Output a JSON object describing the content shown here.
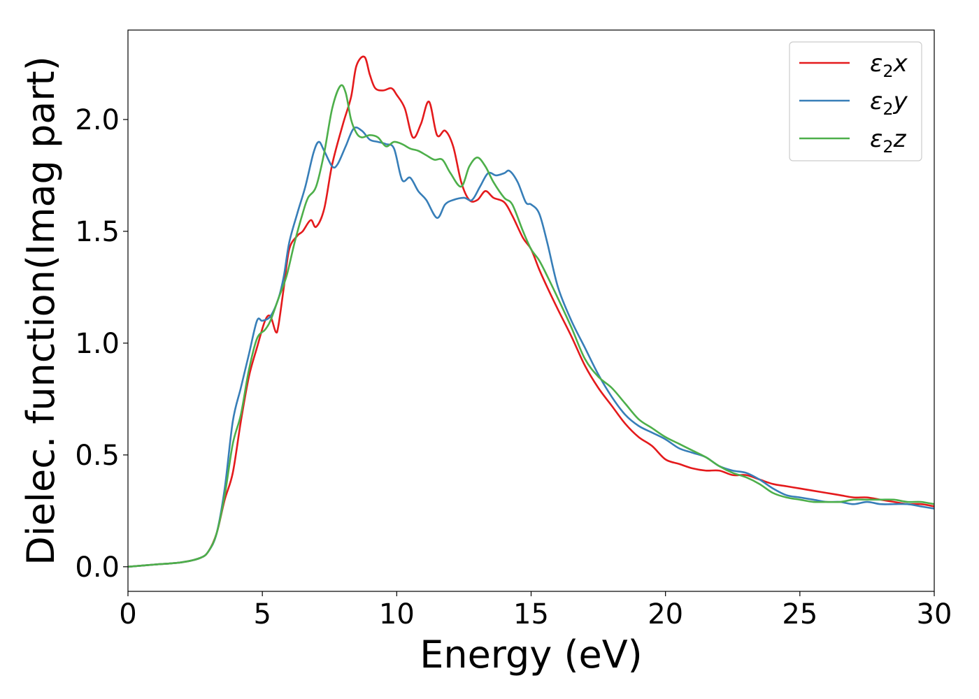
{
  "chart_data": {
    "type": "line",
    "title": "",
    "xlabel": "Energy (eV)",
    "ylabel": "Dielec. function(Imag part)",
    "xlim": [
      0,
      30
    ],
    "ylim": [
      -0.11,
      2.4
    ],
    "xticks": [
      0,
      5,
      10,
      15,
      20,
      25,
      30
    ],
    "xtick_labels": [
      "0",
      "5",
      "10",
      "15",
      "20",
      "25",
      "30"
    ],
    "yticks": [
      0.0,
      0.5,
      1.0,
      1.5,
      2.0
    ],
    "ytick_labels": [
      "0.0",
      "0.5",
      "1.0",
      "1.5",
      "2.0"
    ],
    "grid": false,
    "legend_position": "top-right",
    "series": [
      {
        "name": "ε2x",
        "legend_base": "ε",
        "legend_sub": "2",
        "legend_suffix": "x",
        "color": "#e41a1c",
        "x": [
          0,
          1,
          2,
          2.7,
          3,
          3.3,
          3.6,
          3.9,
          4.2,
          4.5,
          4.8,
          5.1,
          5.3,
          5.5,
          5.6,
          5.8,
          6.0,
          6.3,
          6.5,
          6.8,
          7.0,
          7.3,
          7.6,
          8.0,
          8.3,
          8.5,
          8.8,
          9.0,
          9.2,
          9.5,
          9.8,
          10.0,
          10.3,
          10.6,
          10.9,
          11.2,
          11.5,
          11.8,
          12.1,
          12.4,
          12.7,
          13.0,
          13.3,
          13.6,
          14.0,
          14.3,
          14.7,
          15.0,
          15.3,
          15.6,
          16.0,
          16.5,
          17.0,
          17.5,
          18.0,
          18.5,
          19.0,
          19.5,
          20.0,
          20.5,
          21.0,
          21.5,
          22.0,
          22.5,
          23.0,
          23.5,
          24.0,
          24.5,
          25.0,
          25.5,
          26.0,
          26.5,
          27.0,
          27.5,
          28.0,
          28.5,
          29.0,
          29.5,
          30.0
        ],
        "y": [
          0.0,
          0.01,
          0.02,
          0.04,
          0.07,
          0.15,
          0.3,
          0.42,
          0.65,
          0.85,
          0.98,
          1.1,
          1.12,
          1.05,
          1.08,
          1.25,
          1.42,
          1.48,
          1.5,
          1.55,
          1.52,
          1.6,
          1.8,
          1.98,
          2.1,
          2.24,
          2.28,
          2.2,
          2.14,
          2.13,
          2.14,
          2.11,
          2.05,
          1.92,
          1.98,
          2.08,
          1.93,
          1.95,
          1.88,
          1.72,
          1.64,
          1.64,
          1.68,
          1.65,
          1.63,
          1.57,
          1.47,
          1.42,
          1.33,
          1.25,
          1.15,
          1.03,
          0.9,
          0.8,
          0.72,
          0.64,
          0.58,
          0.54,
          0.48,
          0.46,
          0.44,
          0.43,
          0.43,
          0.41,
          0.41,
          0.39,
          0.37,
          0.36,
          0.35,
          0.34,
          0.33,
          0.32,
          0.31,
          0.31,
          0.3,
          0.29,
          0.28,
          0.28,
          0.27
        ]
      },
      {
        "name": "ε2y",
        "legend_base": "ε",
        "legend_sub": "2",
        "legend_suffix": "y",
        "color": "#377eb8",
        "x": [
          0,
          1,
          2,
          2.7,
          3,
          3.3,
          3.6,
          3.9,
          4.2,
          4.5,
          4.8,
          5.0,
          5.3,
          5.6,
          5.8,
          6.0,
          6.3,
          6.6,
          6.9,
          7.1,
          7.3,
          7.6,
          7.8,
          8.1,
          8.4,
          8.7,
          9.0,
          9.3,
          9.6,
          9.9,
          10.2,
          10.5,
          10.8,
          11.1,
          11.5,
          11.8,
          12.1,
          12.5,
          12.8,
          13.1,
          13.4,
          13.7,
          14.0,
          14.2,
          14.5,
          14.8,
          15.0,
          15.3,
          15.6,
          16.0,
          16.5,
          17.0,
          17.5,
          18.0,
          18.5,
          19.0,
          19.5,
          20.0,
          20.5,
          21.0,
          21.5,
          22.0,
          22.5,
          23.0,
          23.5,
          24.0,
          24.5,
          25.0,
          25.5,
          26.0,
          26.5,
          27.0,
          27.5,
          28.0,
          28.5,
          29.0,
          29.5,
          30.0
        ],
        "y": [
          0.0,
          0.01,
          0.02,
          0.04,
          0.07,
          0.15,
          0.35,
          0.65,
          0.8,
          0.95,
          1.1,
          1.1,
          1.12,
          1.2,
          1.3,
          1.45,
          1.58,
          1.7,
          1.85,
          1.9,
          1.86,
          1.79,
          1.8,
          1.88,
          1.96,
          1.95,
          1.91,
          1.9,
          1.89,
          1.87,
          1.73,
          1.74,
          1.68,
          1.64,
          1.56,
          1.62,
          1.64,
          1.65,
          1.64,
          1.7,
          1.76,
          1.75,
          1.76,
          1.77,
          1.72,
          1.63,
          1.62,
          1.58,
          1.45,
          1.25,
          1.1,
          0.98,
          0.86,
          0.76,
          0.68,
          0.63,
          0.6,
          0.57,
          0.53,
          0.51,
          0.49,
          0.45,
          0.43,
          0.42,
          0.39,
          0.35,
          0.32,
          0.31,
          0.3,
          0.29,
          0.29,
          0.28,
          0.29,
          0.28,
          0.28,
          0.28,
          0.27,
          0.26
        ]
      },
      {
        "name": "ε2z",
        "legend_base": "ε",
        "legend_sub": "2",
        "legend_suffix": "z",
        "color": "#4daf4a",
        "x": [
          0,
          1,
          2,
          2.7,
          3,
          3.3,
          3.6,
          3.9,
          4.2,
          4.5,
          4.8,
          5.1,
          5.3,
          5.6,
          5.9,
          6.2,
          6.5,
          6.7,
          7.0,
          7.3,
          7.6,
          7.9,
          8.1,
          8.3,
          8.5,
          8.7,
          9.0,
          9.3,
          9.6,
          9.9,
          10.2,
          10.5,
          10.8,
          11.1,
          11.4,
          11.7,
          12.0,
          12.4,
          12.7,
          13.0,
          13.3,
          13.6,
          14.0,
          14.3,
          14.7,
          15.0,
          15.3,
          15.6,
          16.0,
          16.5,
          17.0,
          17.5,
          18.0,
          18.5,
          19.0,
          19.5,
          20.0,
          20.5,
          21.0,
          21.5,
          22.0,
          22.5,
          23.0,
          23.5,
          24.0,
          24.5,
          25.0,
          25.5,
          26.0,
          26.5,
          27.0,
          27.5,
          28.0,
          28.5,
          29.0,
          29.5,
          30.0
        ],
        "y": [
          0.0,
          0.01,
          0.02,
          0.04,
          0.07,
          0.15,
          0.32,
          0.55,
          0.68,
          0.88,
          1.02,
          1.06,
          1.1,
          1.2,
          1.3,
          1.45,
          1.58,
          1.65,
          1.7,
          1.85,
          2.05,
          2.15,
          2.12,
          2.0,
          1.94,
          1.92,
          1.93,
          1.92,
          1.88,
          1.9,
          1.89,
          1.87,
          1.86,
          1.84,
          1.82,
          1.82,
          1.76,
          1.7,
          1.79,
          1.83,
          1.79,
          1.72,
          1.65,
          1.62,
          1.5,
          1.42,
          1.37,
          1.3,
          1.2,
          1.07,
          0.93,
          0.85,
          0.8,
          0.73,
          0.66,
          0.62,
          0.58,
          0.55,
          0.52,
          0.49,
          0.45,
          0.42,
          0.4,
          0.37,
          0.33,
          0.31,
          0.3,
          0.29,
          0.29,
          0.29,
          0.3,
          0.3,
          0.3,
          0.3,
          0.29,
          0.29,
          0.28
        ]
      }
    ]
  }
}
